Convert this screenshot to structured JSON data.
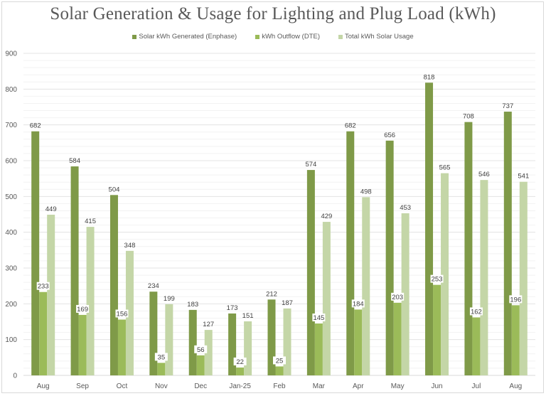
{
  "chart_data": {
    "type": "bar",
    "title": "Solar Generation & Usage for Lighting and Plug Load (kWh)",
    "xlabel": "",
    "ylabel": "",
    "categories": [
      "Aug",
      "Sep",
      "Oct",
      "Nov",
      "Dec",
      "Jan-25",
      "Feb",
      "Mar",
      "Apr",
      "May",
      "Jun",
      "Jul",
      "Aug"
    ],
    "series": [
      {
        "name": "Solar kWh Generated (Enphase)",
        "color": "#7F9A48",
        "values": [
          682,
          584,
          504,
          234,
          183,
          173,
          212,
          574,
          682,
          656,
          818,
          708,
          737
        ]
      },
      {
        "name": "kWh Outflow (DTE)",
        "color": "#9BBB59",
        "values": [
          233,
          169,
          156,
          35,
          56,
          22,
          25,
          145,
          184,
          203,
          253,
          162,
          196
        ]
      },
      {
        "name": "Total kWh Solar Usage",
        "color": "#C4D6A7",
        "values": [
          449,
          415,
          348,
          199,
          127,
          151,
          187,
          429,
          498,
          453,
          565,
          546,
          541
        ]
      }
    ],
    "ylim": [
      0,
      900
    ],
    "yticks": [
      0,
      100,
      200,
      300,
      400,
      500,
      600,
      700,
      800,
      900
    ],
    "grid": true,
    "minor_grid": true,
    "legend_position": "top-center",
    "data_labels": true
  }
}
